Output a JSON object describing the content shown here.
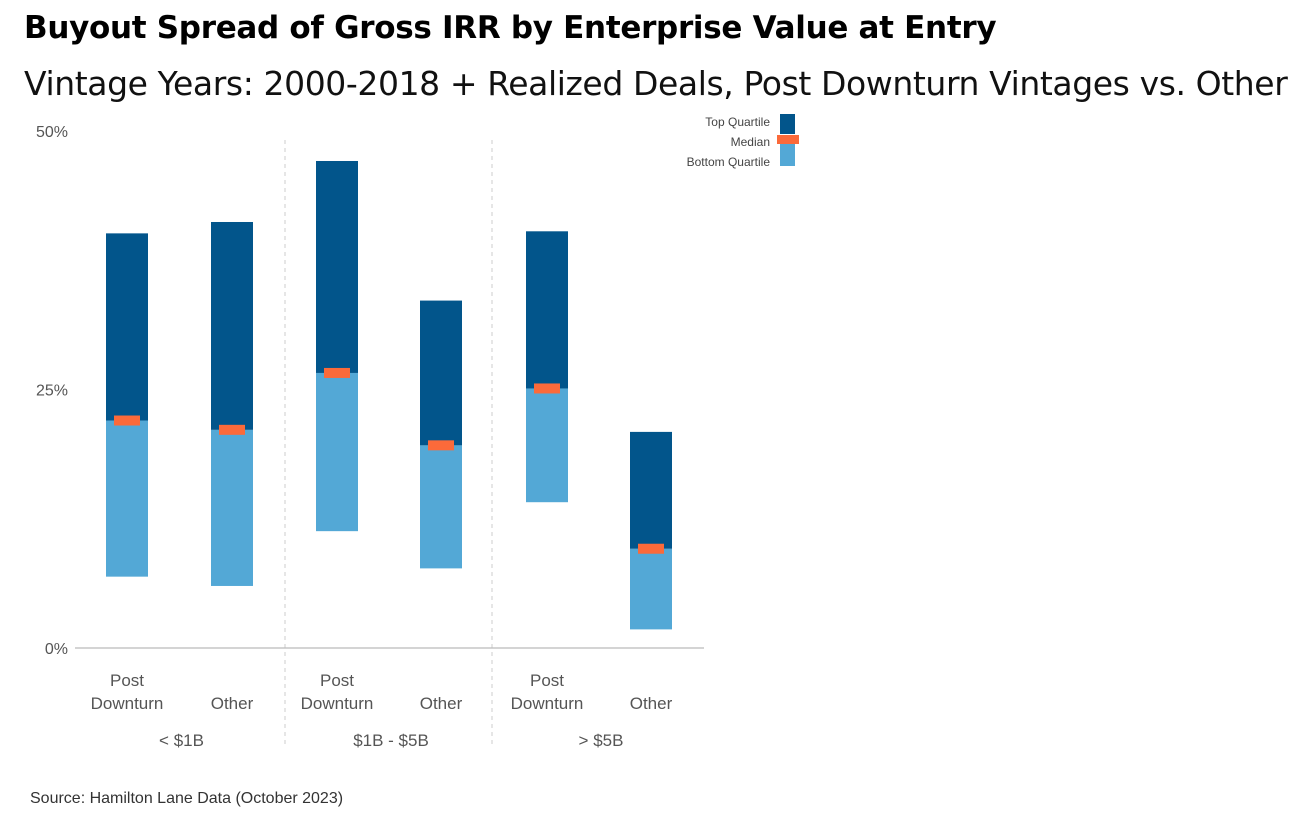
{
  "title": "Buyout Spread of Gross IRR by Enterprise Value at Entry",
  "subtitle": "Vintage Years: 2000-2018 + Realized Deals, Post Downturn Vintages vs. Other",
  "source": "Source: Hamilton Lane Data (October 2023)",
  "colors": {
    "top_quartile": "#02558b",
    "bottom_quartile": "#53a8d6",
    "median": "#fb6a3a",
    "axis": "#bbbbbb",
    "divider": "#cccccc",
    "text": "#555555"
  },
  "legend": {
    "placement": "top-right",
    "items": [
      {
        "label": "Top Quartile",
        "color_key": "top_quartile"
      },
      {
        "label": "Median",
        "color_key": "median"
      },
      {
        "label": "Bottom Quartile",
        "color_key": "bottom_quartile"
      }
    ]
  },
  "chart_data": {
    "type": "bar",
    "ylim": [
      0,
      50
    ],
    "y_ticks": [
      {
        "value": 0,
        "label": "0%"
      },
      {
        "value": 25,
        "label": "25%"
      },
      {
        "value": 50,
        "label": "50%"
      }
    ],
    "groups": [
      {
        "label": "< $1B",
        "bars": [
          {
            "category": [
              "Post",
              "Downturn"
            ],
            "bottom": 6.9,
            "median": 22.0,
            "top": 40.1
          },
          {
            "category": [
              "Other"
            ],
            "bottom": 6.0,
            "median": 21.1,
            "top": 41.2
          }
        ]
      },
      {
        "label": "$1B - $5B",
        "bars": [
          {
            "category": [
              "Post",
              "Downturn"
            ],
            "bottom": 11.3,
            "median": 26.6,
            "top": 47.1
          },
          {
            "category": [
              "Other"
            ],
            "bottom": 7.7,
            "median": 19.6,
            "top": 33.6
          }
        ]
      },
      {
        "label": "> $5B",
        "bars": [
          {
            "category": [
              "Post",
              "Downturn"
            ],
            "bottom": 14.1,
            "median": 25.1,
            "top": 40.3
          },
          {
            "category": [
              "Other"
            ],
            "bottom": 1.8,
            "median": 9.6,
            "top": 20.9
          }
        ]
      }
    ]
  }
}
